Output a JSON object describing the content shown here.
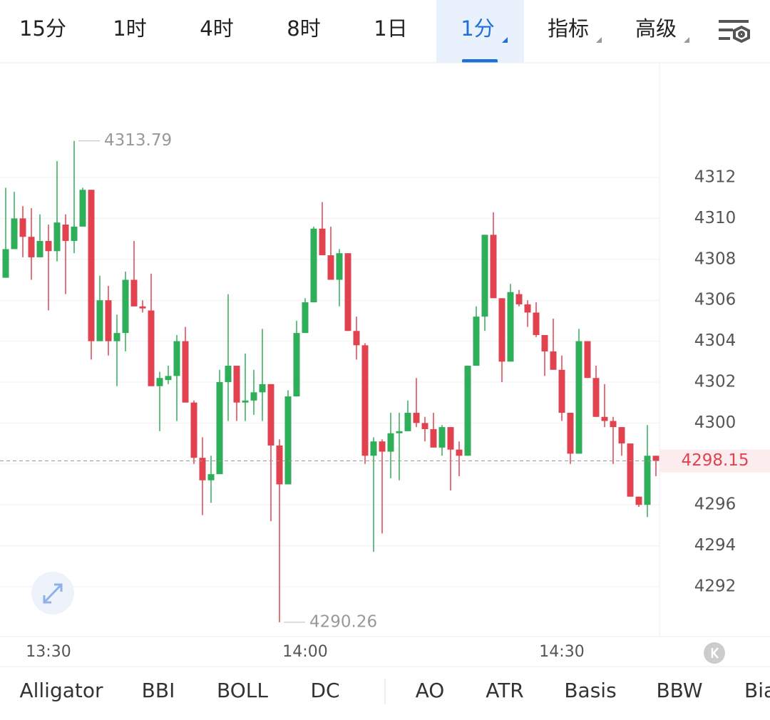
{
  "toolbar": {
    "tabs": [
      "15分",
      "1时",
      "4时",
      "8时",
      "1日",
      "1分",
      "指标",
      "高级"
    ]
  },
  "chart_data": {
    "type": "candlestick",
    "categories": [
      null,
      null,
      null,
      null,
      null,
      "13:30",
      null,
      null,
      null,
      null,
      null,
      null,
      null,
      null,
      null,
      null,
      null,
      null,
      null,
      null,
      null,
      null,
      null,
      null,
      null,
      null,
      null,
      null,
      null,
      null,
      null,
      null,
      null,
      null,
      null,
      "14:00",
      null,
      null,
      null,
      null,
      null,
      null,
      null,
      null,
      null,
      null,
      null,
      null,
      null,
      null,
      null,
      null,
      null,
      null,
      null,
      null,
      null,
      null,
      null,
      null,
      null,
      null,
      null,
      null,
      null,
      "14:30",
      null,
      null,
      null,
      null,
      null,
      null,
      null,
      null,
      null,
      null,
      null
    ],
    "open": [
      4307.1,
      4308.5,
      4310.0,
      4309.1,
      4308.1,
      4308.9,
      4308.4,
      4309.7,
      4308.9,
      4309.6,
      4311.4,
      4304.0,
      4306.0,
      4304.0,
      4304.4,
      4307.0,
      4305.7,
      4305.5,
      4301.8,
      4302.1,
      4302.3,
      4304.0,
      4301.0,
      4298.3,
      4297.2,
      4297.5,
      4302.0,
      4302.8,
      4301.0,
      4301.1,
      4301.5,
      4301.9,
      4298.9,
      4297.0,
      4301.3,
      4304.4,
      4305.9,
      4309.5,
      4308.2,
      4307.0,
      4308.3,
      4304.5,
      4303.8,
      4298.4,
      4299.1,
      4298.6,
      4299.5,
      4299.6,
      4300.5,
      4300.0,
      4299.7,
      4298.8,
      4299.8,
      4298.7,
      4298.4,
      4302.8,
      4305.2,
      4309.2,
      4306.1,
      4303.0,
      4306.3,
      4305.8,
      4305.4,
      4304.3,
      4303.5,
      4302.6,
      4300.5,
      4298.5,
      4304.0,
      4302.2,
      4300.3,
      4300.1,
      4299.8,
      4299.0,
      4296.4,
      4296.0,
      4298.4
    ],
    "high": [
      4311.5,
      4311.3,
      4310.6,
      4310.5,
      4310.2,
      4309.7,
      4312.8,
      4310.2,
      4313.79,
      4311.5,
      4311.4,
      4307.2,
      4306.7,
      4305.3,
      4307.4,
      4308.9,
      4306.0,
      4307.3,
      4302.5,
      4302.8,
      4304.3,
      4304.7,
      4301.1,
      4299.3,
      4298.4,
      4302.6,
      4306.3,
      4302.8,
      4303.4,
      4302.6,
      4304.6,
      4301.9,
      4299.2,
      4301.6,
      4305.0,
      4306.1,
      4309.6,
      4310.8,
      4309.6,
      4308.5,
      4308.3,
      4305.2,
      4303.9,
      4299.3,
      4299.2,
      4300.5,
      4300.5,
      4301.1,
      4302.2,
      4300.3,
      4300.5,
      4299.9,
      4299.8,
      4299.1,
      4302.8,
      4305.7,
      4309.2,
      4310.3,
      4306.1,
      4306.8,
      4306.5,
      4306.0,
      4305.9,
      4304.3,
      4305.1,
      4303.3,
      4300.5,
      4304.6,
      4304.0,
      4302.8,
      4301.9,
      4300.3,
      4299.8,
      4299.0,
      4296.4,
      4299.9,
      4298.4
    ],
    "low": [
      4307.1,
      4308.5,
      4308.1,
      4307.0,
      4308.1,
      4305.5,
      4307.9,
      4306.3,
      4308.3,
      4309.6,
      4303.1,
      4304.0,
      4303.3,
      4301.8,
      4303.5,
      4305.7,
      4305.4,
      4301.8,
      4299.6,
      4301.9,
      4300.1,
      4301.0,
      4298.0,
      4295.5,
      4296.1,
      4297.5,
      4300.1,
      4300.1,
      4300.1,
      4300.4,
      4300.1,
      4295.2,
      4290.26,
      4297.0,
      4301.3,
      4304.4,
      4305.9,
      4308.2,
      4307.0,
      4305.7,
      4304.5,
      4303.1,
      4298.0,
      4293.7,
      4294.6,
      4297.3,
      4297.2,
      4299.6,
      4299.8,
      4299.1,
      4298.8,
      4298.4,
      4296.7,
      4297.4,
      4298.4,
      4302.8,
      4304.5,
      4306.1,
      4302.0,
      4303.0,
      4305.7,
      4304.7,
      4304.2,
      4302.3,
      4302.6,
      4300.1,
      4298.0,
      4298.5,
      4302.2,
      4300.3,
      4299.8,
      4298.0,
      4298.4,
      4296.4,
      4295.9,
      4295.4,
      4297.4
    ],
    "close": [
      4308.5,
      4310.0,
      4309.1,
      4308.1,
      4308.9,
      4308.4,
      4309.8,
      4308.9,
      4309.6,
      4311.4,
      4304.0,
      4306.0,
      4304.0,
      4304.4,
      4307.0,
      4305.7,
      4305.6,
      4301.8,
      4302.2,
      4302.3,
      4304.0,
      4301.0,
      4298.3,
      4297.2,
      4297.5,
      4302.0,
      4302.8,
      4301.0,
      4301.1,
      4301.5,
      4301.9,
      4298.9,
      4297.0,
      4301.3,
      4304.4,
      4305.9,
      4309.5,
      4308.2,
      4307.0,
      4308.3,
      4304.5,
      4303.8,
      4298.4,
      4299.1,
      4298.6,
      4299.5,
      4299.6,
      4300.5,
      4300.0,
      4299.7,
      4298.8,
      4299.8,
      4298.7,
      4298.4,
      4302.8,
      4305.2,
      4309.2,
      4306.1,
      4303.0,
      4306.4,
      4305.8,
      4305.4,
      4304.3,
      4303.5,
      4302.6,
      4300.5,
      4298.5,
      4304.0,
      4302.2,
      4300.3,
      4300.1,
      4299.8,
      4299.0,
      4296.4,
      4296.0,
      4298.4,
      4298.15
    ],
    "up_color": "#2fae5a",
    "down_color": "#e0434f",
    "ylim": [
      4289.56,
      4317.61
    ],
    "yticks": [
      4292,
      4294,
      4296,
      4298,
      4300,
      4302,
      4304,
      4306,
      4308,
      4310,
      4312
    ],
    "grid": true,
    "high_label": 4313.79,
    "low_label": 4290.26,
    "last_price": 4298.15
  },
  "indicators": [
    "Alligator",
    "BBI",
    "BOLL",
    "DC",
    "AO",
    "ATR",
    "Basis",
    "BBW",
    "Bia"
  ]
}
